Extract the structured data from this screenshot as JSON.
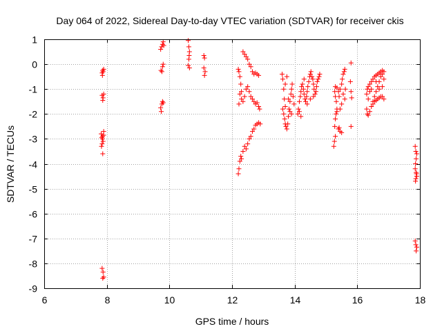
{
  "chart_data": {
    "type": "scatter",
    "title": "Day 064 of 2022, Sidereal Day-to-day VTEC variation (SDTVAR) for receiver ckis",
    "xlabel": "GPS time / hours",
    "ylabel": "SDTVAR / TECUs",
    "xlim": [
      6,
      18
    ],
    "ylim": [
      -9,
      1
    ],
    "xticks": [
      6,
      8,
      10,
      12,
      14,
      16,
      18
    ],
    "yticks": [
      1,
      0,
      -1,
      -2,
      -3,
      -4,
      -5,
      -6,
      -7,
      -8,
      -9
    ],
    "grid": true,
    "marker": "+",
    "colors": {
      "points": "#ff0000",
      "grid": "#a0a0a0",
      "axes": "#000000"
    },
    "series": [
      {
        "name": "SDTVAR",
        "points": [
          [
            7.85,
            -0.35
          ],
          [
            7.87,
            -0.25
          ],
          [
            7.88,
            -0.3
          ],
          [
            7.9,
            -0.2
          ],
          [
            7.86,
            -0.45
          ],
          [
            7.85,
            -1.25
          ],
          [
            7.88,
            -1.35
          ],
          [
            7.9,
            -1.2
          ],
          [
            7.87,
            -1.45
          ],
          [
            7.82,
            -2.8
          ],
          [
            7.84,
            -2.95
          ],
          [
            7.86,
            -3.0
          ],
          [
            7.88,
            -3.1
          ],
          [
            7.9,
            -2.85
          ],
          [
            7.85,
            -3.2
          ],
          [
            7.83,
            -3.3
          ],
          [
            7.87,
            -3.6
          ],
          [
            7.9,
            -2.7
          ],
          [
            7.86,
            -2.9
          ],
          [
            7.85,
            -8.2
          ],
          [
            7.88,
            -8.35
          ],
          [
            7.9,
            -8.55
          ],
          [
            7.87,
            -8.6
          ],
          [
            9.72,
            0.6
          ],
          [
            9.75,
            0.7
          ],
          [
            9.78,
            0.8
          ],
          [
            9.8,
            0.9
          ],
          [
            9.82,
            0.75
          ],
          [
            9.73,
            -0.25
          ],
          [
            9.76,
            -0.3
          ],
          [
            9.8,
            0.0
          ],
          [
            9.78,
            -0.1
          ],
          [
            9.72,
            -1.75
          ],
          [
            9.74,
            -1.9
          ],
          [
            9.76,
            -1.6
          ],
          [
            9.78,
            -1.5
          ],
          [
            9.8,
            -1.55
          ],
          [
            10.6,
            0.95
          ],
          [
            10.62,
            0.7
          ],
          [
            10.64,
            0.5
          ],
          [
            10.63,
            0.35
          ],
          [
            10.62,
            0.2
          ],
          [
            10.6,
            -0.05
          ],
          [
            10.64,
            -0.15
          ],
          [
            11.1,
            0.35
          ],
          [
            11.12,
            0.25
          ],
          [
            11.1,
            -0.15
          ],
          [
            11.14,
            -0.3
          ],
          [
            11.12,
            -0.45
          ],
          [
            12.2,
            -4.4
          ],
          [
            12.22,
            -4.2
          ],
          [
            12.25,
            -3.9
          ],
          [
            12.28,
            -3.7
          ],
          [
            12.3,
            -3.8
          ],
          [
            12.35,
            -3.5
          ],
          [
            12.4,
            -3.3
          ],
          [
            12.45,
            -3.4
          ],
          [
            12.5,
            -3.2
          ],
          [
            12.55,
            -3.0
          ],
          [
            12.6,
            -2.9
          ],
          [
            12.65,
            -2.7
          ],
          [
            12.7,
            -2.6
          ],
          [
            12.75,
            -2.45
          ],
          [
            12.8,
            -2.4
          ],
          [
            12.85,
            -2.35
          ],
          [
            12.9,
            -2.4
          ],
          [
            12.88,
            -1.8
          ],
          [
            12.2,
            -0.2
          ],
          [
            12.22,
            -0.3
          ],
          [
            12.25,
            -0.5
          ],
          [
            12.28,
            -0.8
          ],
          [
            12.3,
            -1.1
          ],
          [
            12.25,
            -1.2
          ],
          [
            12.3,
            -1.4
          ],
          [
            12.22,
            -1.6
          ],
          [
            12.35,
            -1.5
          ],
          [
            12.4,
            -1.3
          ],
          [
            12.45,
            -1.0
          ],
          [
            12.35,
            0.5
          ],
          [
            12.4,
            0.4
          ],
          [
            12.45,
            0.3
          ],
          [
            12.5,
            0.2
          ],
          [
            12.55,
            0.0
          ],
          [
            12.6,
            -0.1
          ],
          [
            12.65,
            -0.3
          ],
          [
            12.7,
            -0.4
          ],
          [
            12.75,
            -0.35
          ],
          [
            12.8,
            -0.4
          ],
          [
            12.85,
            -0.45
          ],
          [
            12.5,
            -0.9
          ],
          [
            12.55,
            -1.1
          ],
          [
            12.6,
            -1.3
          ],
          [
            12.65,
            -1.4
          ],
          [
            12.7,
            -1.5
          ],
          [
            12.75,
            -1.6
          ],
          [
            12.8,
            -1.55
          ],
          [
            12.85,
            -1.7
          ],
          [
            13.6,
            -0.4
          ],
          [
            13.62,
            -0.6
          ],
          [
            13.65,
            -1.0
          ],
          [
            13.67,
            -1.4
          ],
          [
            13.7,
            -1.7
          ],
          [
            13.62,
            -1.8
          ],
          [
            13.65,
            -2.0
          ],
          [
            13.68,
            -2.2
          ],
          [
            13.7,
            -2.4
          ],
          [
            13.72,
            -2.5
          ],
          [
            13.75,
            -2.6
          ],
          [
            13.78,
            -2.4
          ],
          [
            13.8,
            -2.1
          ],
          [
            13.82,
            -1.8
          ],
          [
            13.85,
            -1.5
          ],
          [
            13.88,
            -1.2
          ],
          [
            13.9,
            -1.0
          ],
          [
            13.92,
            -0.8
          ],
          [
            13.8,
            -1.4
          ],
          [
            13.85,
            -1.9
          ],
          [
            13.95,
            -1.3
          ],
          [
            13.98,
            -1.6
          ],
          [
            13.9,
            -2.0
          ],
          [
            13.75,
            -0.5
          ],
          [
            13.7,
            -0.8
          ],
          [
            14.1,
            -2.0
          ],
          [
            14.12,
            -1.8
          ],
          [
            14.15,
            -1.5
          ],
          [
            14.18,
            -1.3
          ],
          [
            14.2,
            -1.1
          ],
          [
            14.22,
            -0.9
          ],
          [
            14.25,
            -0.8
          ],
          [
            14.28,
            -1.0
          ],
          [
            14.3,
            -1.2
          ],
          [
            14.33,
            -1.4
          ],
          [
            14.35,
            -1.5
          ],
          [
            14.38,
            -1.3
          ],
          [
            14.4,
            -1.1
          ],
          [
            14.42,
            -0.9
          ],
          [
            14.45,
            -0.7
          ],
          [
            14.48,
            -0.5
          ],
          [
            14.5,
            -0.4
          ],
          [
            14.52,
            -0.3
          ],
          [
            14.55,
            -0.5
          ],
          [
            14.58,
            -0.6
          ],
          [
            14.6,
            -0.8
          ],
          [
            14.62,
            -1.0
          ],
          [
            14.65,
            -1.2
          ],
          [
            14.68,
            -1.1
          ],
          [
            14.7,
            -0.9
          ],
          [
            14.72,
            -0.7
          ],
          [
            14.75,
            -0.6
          ],
          [
            14.78,
            -0.5
          ],
          [
            14.8,
            -0.4
          ],
          [
            14.2,
            -2.1
          ],
          [
            14.15,
            -1.9
          ],
          [
            14.4,
            -1.6
          ],
          [
            14.5,
            -1.4
          ],
          [
            14.6,
            -1.3
          ],
          [
            14.3,
            -0.6
          ],
          [
            15.25,
            -3.3
          ],
          [
            15.27,
            -3.1
          ],
          [
            15.3,
            -2.9
          ],
          [
            15.28,
            -2.5
          ],
          [
            15.3,
            -2.2
          ],
          [
            15.32,
            -2.0
          ],
          [
            15.35,
            -1.8
          ],
          [
            15.33,
            -1.5
          ],
          [
            15.3,
            -1.3
          ],
          [
            15.28,
            -1.1
          ],
          [
            15.3,
            -0.9
          ],
          [
            15.35,
            -0.95
          ],
          [
            15.4,
            -1.1
          ],
          [
            15.42,
            -1.3
          ],
          [
            15.45,
            -1.0
          ],
          [
            15.5,
            -0.8
          ],
          [
            15.52,
            -0.6
          ],
          [
            15.55,
            -0.4
          ],
          [
            15.6,
            -0.2
          ],
          [
            15.58,
            -0.3
          ],
          [
            15.4,
            -2.6
          ],
          [
            15.45,
            -2.7
          ],
          [
            15.5,
            -2.75
          ],
          [
            15.42,
            -2.55
          ],
          [
            15.35,
            -1.9
          ],
          [
            15.55,
            -1.2
          ],
          [
            15.6,
            -1.4
          ],
          [
            15.5,
            -1.6
          ],
          [
            15.45,
            -1.8
          ],
          [
            15.62,
            -1.0
          ],
          [
            15.8,
            0.05
          ],
          [
            15.78,
            -0.7
          ],
          [
            15.8,
            -1.1
          ],
          [
            15.82,
            -1.35
          ],
          [
            15.8,
            -2.5
          ],
          [
            16.3,
            -1.8
          ],
          [
            16.32,
            -2.0
          ],
          [
            16.35,
            -2.05
          ],
          [
            16.4,
            -1.9
          ],
          [
            16.45,
            -1.7
          ],
          [
            16.5,
            -1.5
          ],
          [
            16.55,
            -1.3
          ],
          [
            16.6,
            -1.1
          ],
          [
            16.65,
            -0.9
          ],
          [
            16.7,
            -0.7
          ],
          [
            16.75,
            -0.5
          ],
          [
            16.8,
            -0.4
          ],
          [
            16.85,
            -0.3
          ],
          [
            16.3,
            -1.2
          ],
          [
            16.32,
            -1.0
          ],
          [
            16.35,
            -0.9
          ],
          [
            16.4,
            -0.8
          ],
          [
            16.45,
            -0.7
          ],
          [
            16.5,
            -0.6
          ],
          [
            16.55,
            -0.5
          ],
          [
            16.6,
            -0.45
          ],
          [
            16.65,
            -0.4
          ],
          [
            16.7,
            -0.35
          ],
          [
            16.75,
            -0.3
          ],
          [
            16.8,
            -0.25
          ],
          [
            16.5,
            -1.6
          ],
          [
            16.55,
            -1.5
          ],
          [
            16.6,
            -1.45
          ],
          [
            16.65,
            -1.4
          ],
          [
            16.7,
            -1.35
          ],
          [
            16.75,
            -1.3
          ],
          [
            16.8,
            -1.3
          ],
          [
            16.85,
            -1.4
          ],
          [
            16.35,
            -1.4
          ],
          [
            16.4,
            -1.1
          ],
          [
            16.45,
            -1.0
          ],
          [
            16.6,
            -0.7
          ],
          [
            16.7,
            -1.0
          ],
          [
            16.8,
            -0.9
          ],
          [
            16.85,
            -0.6
          ],
          [
            17.85,
            -3.3
          ],
          [
            17.87,
            -3.5
          ],
          [
            17.9,
            -3.6
          ],
          [
            17.88,
            -3.8
          ],
          [
            17.86,
            -4.0
          ],
          [
            17.85,
            -4.2
          ],
          [
            17.88,
            -4.35
          ],
          [
            17.9,
            -4.5
          ],
          [
            17.87,
            -4.6
          ],
          [
            17.86,
            -4.7
          ],
          [
            17.89,
            -4.4
          ],
          [
            17.85,
            -7.1
          ],
          [
            17.87,
            -7.25
          ],
          [
            17.9,
            -7.35
          ],
          [
            17.88,
            -7.5
          ]
        ]
      }
    ]
  }
}
